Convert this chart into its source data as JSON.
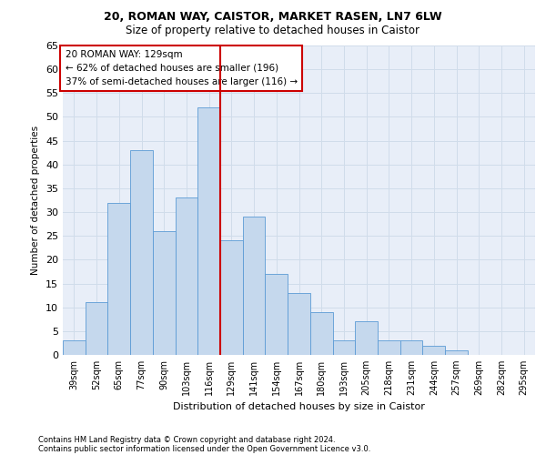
{
  "title_line1": "20, ROMAN WAY, CAISTOR, MARKET RASEN, LN7 6LW",
  "title_line2": "Size of property relative to detached houses in Caistor",
  "xlabel": "Distribution of detached houses by size in Caistor",
  "ylabel": "Number of detached properties",
  "categories": [
    "39sqm",
    "52sqm",
    "65sqm",
    "77sqm",
    "90sqm",
    "103sqm",
    "116sqm",
    "129sqm",
    "141sqm",
    "154sqm",
    "167sqm",
    "180sqm",
    "193sqm",
    "205sqm",
    "218sqm",
    "231sqm",
    "244sqm",
    "257sqm",
    "269sqm",
    "282sqm",
    "295sqm"
  ],
  "values": [
    3,
    11,
    32,
    43,
    26,
    33,
    52,
    24,
    29,
    17,
    13,
    9,
    3,
    7,
    3,
    3,
    2,
    1,
    0,
    0,
    0
  ],
  "bar_color": "#c5d8ed",
  "bar_edge_color": "#5b9bd5",
  "annotation_title": "20 ROMAN WAY: 129sqm",
  "annotation_line1": "← 62% of detached houses are smaller (196)",
  "annotation_line2": "37% of semi-detached houses are larger (116) →",
  "annotation_box_color": "#ffffff",
  "annotation_box_edge": "#cc0000",
  "vline_color": "#cc0000",
  "grid_color": "#d0dcea",
  "background_color": "#e8eef8",
  "ylim": [
    0,
    65
  ],
  "yticks": [
    0,
    5,
    10,
    15,
    20,
    25,
    30,
    35,
    40,
    45,
    50,
    55,
    60,
    65
  ],
  "footnote1": "Contains HM Land Registry data © Crown copyright and database right 2024.",
  "footnote2": "Contains public sector information licensed under the Open Government Licence v3.0."
}
